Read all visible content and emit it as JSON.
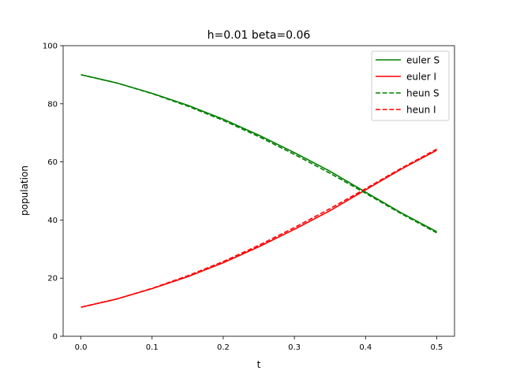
{
  "chart_data": {
    "type": "line",
    "title": "h=0.01 beta=0.06",
    "xlabel": "t",
    "ylabel": "population",
    "xlim": [
      -0.025,
      0.525
    ],
    "ylim": [
      0,
      100
    ],
    "xticks": [
      0.0,
      0.1,
      0.2,
      0.3,
      0.4,
      0.5
    ],
    "xtick_labels": [
      "0.0",
      "0.1",
      "0.2",
      "0.3",
      "0.4",
      "0.5"
    ],
    "yticks": [
      0,
      20,
      40,
      60,
      80,
      100
    ],
    "ytick_labels": [
      "0",
      "20",
      "40",
      "60",
      "80",
      "100"
    ],
    "grid": false,
    "legend_position": "top-right",
    "x": [
      0.0,
      0.05,
      0.1,
      0.15,
      0.2,
      0.25,
      0.3,
      0.35,
      0.4,
      0.45,
      0.5
    ],
    "series": [
      {
        "name": "euler S",
        "color": "#008000",
        "dash": "solid",
        "values": [
          90.0,
          87.2,
          83.6,
          79.5,
          74.7,
          69.2,
          63.2,
          56.8,
          49.6,
          42.5,
          36.0
        ]
      },
      {
        "name": "euler I",
        "color": "#ff0000",
        "dash": "solid",
        "values": [
          10.0,
          12.8,
          16.4,
          20.5,
          25.3,
          30.8,
          36.8,
          43.2,
          50.4,
          57.5,
          64.0
        ]
      },
      {
        "name": "heun S",
        "color": "#008000",
        "dash": "dashed",
        "values": [
          90.0,
          87.2,
          83.5,
          79.2,
          74.3,
          68.7,
          62.6,
          56.1,
          49.2,
          42.2,
          35.6
        ]
      },
      {
        "name": "heun I",
        "color": "#ff0000",
        "dash": "dashed",
        "values": [
          10.0,
          12.8,
          16.5,
          20.8,
          25.7,
          31.3,
          37.4,
          43.9,
          50.8,
          57.8,
          64.4
        ]
      }
    ]
  }
}
